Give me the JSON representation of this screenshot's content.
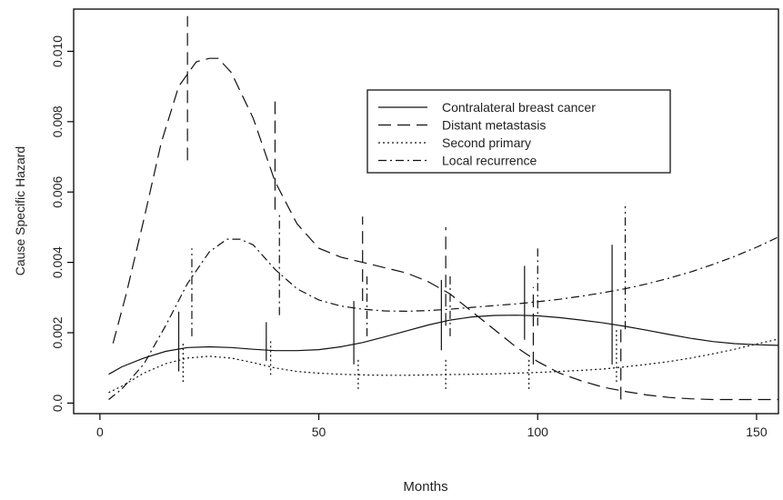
{
  "chart_data": {
    "type": "line",
    "title": "",
    "xlabel": "Months",
    "ylabel": "Cause Specific Hazard",
    "xlim": [
      -6,
      155
    ],
    "ylim": [
      -0.0003,
      0.0112
    ],
    "x_ticks": [
      0,
      50,
      100,
      150
    ],
    "x_tick_labels": [
      "0",
      "50",
      "100",
      "150"
    ],
    "y_ticks": [
      0.0,
      0.002,
      0.004,
      0.006,
      0.008,
      0.01
    ],
    "y_tick_labels": [
      "0.0",
      "0.002",
      "0.004",
      "0.006",
      "0.008",
      "0.010"
    ],
    "grid": false,
    "legend_position": "top-center",
    "series": [
      {
        "name": "Contralateral breast cancer",
        "dash": "solid",
        "x": [
          2,
          5,
          10,
          15,
          20,
          25,
          30,
          35,
          40,
          45,
          50,
          55,
          60,
          65,
          70,
          75,
          80,
          85,
          90,
          95,
          100,
          105,
          110,
          115,
          120,
          125,
          130,
          135,
          140,
          145,
          150,
          155
        ],
        "y": [
          0.00082,
          0.00103,
          0.00128,
          0.00147,
          0.00158,
          0.0016,
          0.00158,
          0.00153,
          0.00149,
          0.00149,
          0.00152,
          0.0016,
          0.00172,
          0.00188,
          0.00205,
          0.00222,
          0.00236,
          0.00245,
          0.00249,
          0.0025,
          0.00248,
          0.00243,
          0.00236,
          0.00228,
          0.00218,
          0.00207,
          0.00195,
          0.00184,
          0.00175,
          0.00169,
          0.00166,
          0.00164
        ],
        "error_bars": [
          {
            "x": 18,
            "lo": 0.0009,
            "hi": 0.0026
          },
          {
            "x": 38,
            "lo": 0.0012,
            "hi": 0.0023
          },
          {
            "x": 58,
            "lo": 0.0011,
            "hi": 0.0029
          },
          {
            "x": 78,
            "lo": 0.0015,
            "hi": 0.0035
          },
          {
            "x": 97,
            "lo": 0.0018,
            "hi": 0.0039
          },
          {
            "x": 117,
            "lo": 0.0011,
            "hi": 0.0045
          }
        ]
      },
      {
        "name": "Distant metastasis",
        "dash": "long-dash",
        "x": [
          3,
          6,
          10,
          14,
          18,
          22,
          25,
          27,
          30,
          35,
          40,
          45,
          50,
          55,
          60,
          65,
          70,
          75,
          80,
          85,
          90,
          95,
          100,
          105,
          110,
          115,
          120,
          125,
          130,
          135,
          140,
          145,
          150,
          155
        ],
        "y": [
          0.0017,
          0.0031,
          0.0052,
          0.0074,
          0.009,
          0.0097,
          0.0098,
          0.0098,
          0.0094,
          0.0081,
          0.0063,
          0.0051,
          0.0044,
          0.00415,
          0.004,
          0.00385,
          0.0037,
          0.00345,
          0.0031,
          0.0026,
          0.0021,
          0.0016,
          0.00118,
          0.00085,
          0.00063,
          0.00045,
          0.00033,
          0.00023,
          0.00016,
          0.00012,
          0.0001,
          0.0001,
          0.0001,
          0.0001
        ],
        "error_bars": [
          {
            "x": 20,
            "lo": 0.0069,
            "hi": 0.011
          },
          {
            "x": 40,
            "lo": 0.0055,
            "hi": 0.0086
          },
          {
            "x": 60,
            "lo": 0.0029,
            "hi": 0.0053
          },
          {
            "x": 79,
            "lo": 0.0022,
            "hi": 0.005
          },
          {
            "x": 99,
            "lo": 0.0011,
            "hi": 0.0033
          },
          {
            "x": 119,
            "lo": 0.0001,
            "hi": 0.0022
          }
        ]
      },
      {
        "name": "Second primary",
        "dash": "dotted",
        "x": [
          2,
          5,
          10,
          15,
          20,
          25,
          30,
          35,
          40,
          45,
          50,
          55,
          60,
          65,
          70,
          75,
          80,
          85,
          90,
          95,
          100,
          105,
          110,
          115,
          120,
          125,
          130,
          135,
          140,
          145,
          150,
          155
        ],
        "y": [
          0.0003,
          0.00048,
          0.00085,
          0.00112,
          0.00128,
          0.00133,
          0.00128,
          0.00115,
          0.001,
          0.0009,
          0.00085,
          0.00082,
          0.0008,
          0.00079,
          0.00079,
          0.0008,
          0.00081,
          0.00082,
          0.00083,
          0.00085,
          0.00087,
          0.0009,
          0.00093,
          0.00097,
          0.00103,
          0.0011,
          0.00118,
          0.00128,
          0.0014,
          0.00153,
          0.00168,
          0.00182
        ],
        "error_bars": [
          {
            "x": 19,
            "lo": 0.0006,
            "hi": 0.0017
          },
          {
            "x": 39,
            "lo": 0.0008,
            "hi": 0.0018
          },
          {
            "x": 59,
            "lo": 0.0004,
            "hi": 0.0013
          },
          {
            "x": 79,
            "lo": 0.0004,
            "hi": 0.0013
          },
          {
            "x": 98,
            "lo": 0.0004,
            "hi": 0.0013
          },
          {
            "x": 118,
            "lo": 0.0006,
            "hi": 0.0021
          }
        ]
      },
      {
        "name": "Local recurrence",
        "dash": "dot-dash",
        "x": [
          2,
          5,
          10,
          15,
          20,
          25,
          29,
          32,
          35,
          40,
          45,
          50,
          55,
          60,
          65,
          70,
          75,
          80,
          85,
          90,
          95,
          100,
          105,
          110,
          115,
          120,
          125,
          130,
          135,
          140,
          145,
          150,
          155
        ],
        "y": [
          0.0001,
          0.0004,
          0.0011,
          0.0022,
          0.0034,
          0.0043,
          0.00466,
          0.00466,
          0.0045,
          0.0038,
          0.00325,
          0.00293,
          0.00276,
          0.00267,
          0.00262,
          0.00261,
          0.00263,
          0.00267,
          0.00272,
          0.00277,
          0.00282,
          0.00288,
          0.00295,
          0.00304,
          0.00314,
          0.00325,
          0.00339,
          0.00355,
          0.00373,
          0.00394,
          0.00417,
          0.00443,
          0.00472
        ],
        "error_bars": [
          {
            "x": 21,
            "lo": 0.0019,
            "hi": 0.0044
          },
          {
            "x": 41,
            "lo": 0.0025,
            "hi": 0.0054
          },
          {
            "x": 61,
            "lo": 0.0019,
            "hi": 0.0036
          },
          {
            "x": 80,
            "lo": 0.0019,
            "hi": 0.0037
          },
          {
            "x": 100,
            "lo": 0.0022,
            "hi": 0.0044
          },
          {
            "x": 120,
            "lo": 0.0021,
            "hi": 0.0056
          }
        ]
      }
    ]
  }
}
